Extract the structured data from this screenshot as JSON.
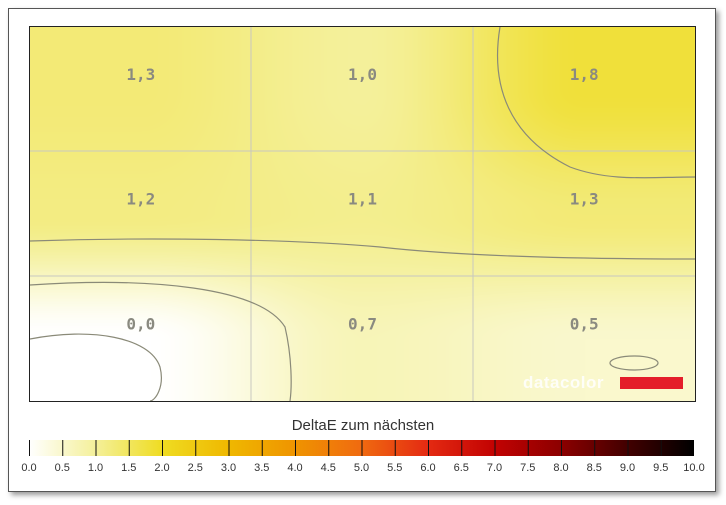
{
  "chart_data": {
    "type": "heatmap",
    "title": "DeltaE zum nächsten",
    "rows": 3,
    "cols": 3,
    "values": [
      [
        1.3,
        1.0,
        1.8
      ],
      [
        1.2,
        1.1,
        1.3
      ],
      [
        0.0,
        0.7,
        0.5
      ]
    ],
    "labels": [
      [
        "1,3",
        "1,0",
        "1,8"
      ],
      [
        "1,2",
        "1,1",
        "1,3"
      ],
      [
        "0,0",
        "0,7",
        "0,5"
      ]
    ],
    "colorbar": {
      "min": 0,
      "max": 10,
      "ticks": [
        "0.0",
        "0.5",
        "1.0",
        "1.5",
        "2.0",
        "2.5",
        "3.0",
        "3.5",
        "4.0",
        "4.5",
        "5.0",
        "5.5",
        "6.0",
        "6.5",
        "7.0",
        "7.5",
        "8.0",
        "8.5",
        "9.0",
        "9.5",
        "10.0"
      ],
      "stops": [
        [
          0,
          "#ffffff"
        ],
        [
          1,
          "#f4f09a"
        ],
        [
          2,
          "#efdc22"
        ],
        [
          3,
          "#efb800"
        ],
        [
          4,
          "#ef9400"
        ],
        [
          5,
          "#f06a10"
        ],
        [
          6,
          "#e42a12"
        ],
        [
          7,
          "#c20202"
        ],
        [
          8,
          "#8c0000"
        ],
        [
          9,
          "#420000"
        ],
        [
          10,
          "#000000"
        ]
      ]
    }
  },
  "logo": "datacolor"
}
